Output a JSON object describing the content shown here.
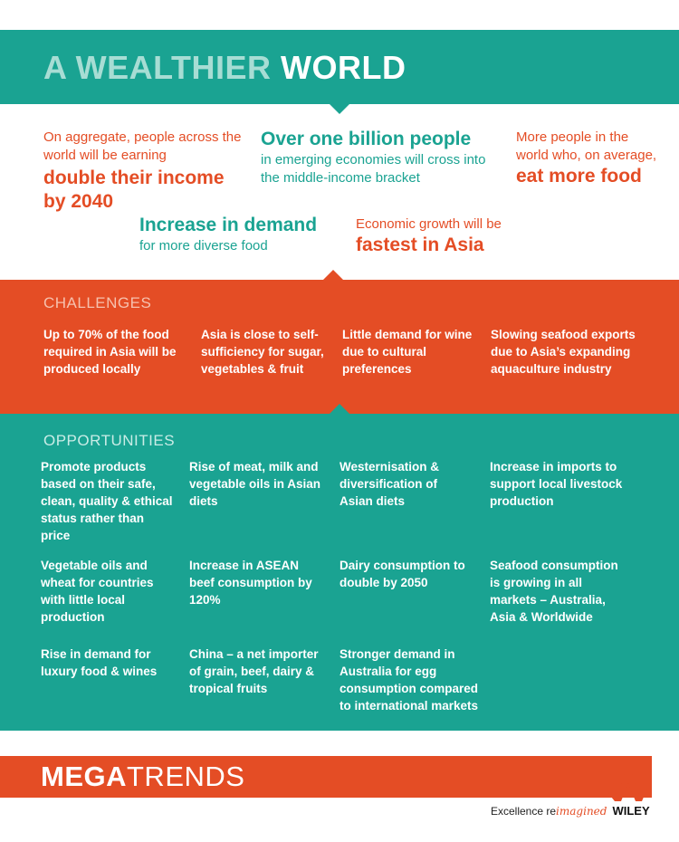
{
  "header": {
    "title_light": "A WEALTHIER",
    "title_bold": "WORLD"
  },
  "highlights": {
    "income": {
      "text": "On aggregate, people across the world will be earning",
      "big": "double their income by 2040"
    },
    "billion": {
      "big": "Over one billion people",
      "text": "in emerging economies will cross into the middle-income bracket"
    },
    "food": {
      "text": "More people in the world who, on average,",
      "big": "eat more food"
    },
    "demand": {
      "big": "Increase in demand",
      "text": "for more diverse food"
    },
    "growth": {
      "text": "Economic growth will be",
      "big": "fastest in Asia"
    }
  },
  "challenges": {
    "label": "CHALLENGES",
    "items": [
      "Up to 70% of the food required in Asia will be produced locally",
      "Asia is close to self-sufficiency for sugar, vegetables & fruit",
      "Little demand for wine due to cultural preferences",
      "Slowing seafood exports due to Asia’s expanding aquaculture industry"
    ]
  },
  "opportunities": {
    "label": "OPPORTUNITIES",
    "items": [
      "Promote products based on their safe, clean, quality & ethical status rather than price",
      "Rise of meat, milk and vegetable oils in Asian diets",
      "Westernisation & diversification of Asian diets",
      "Increase in imports to support local livestock production",
      "Vegetable oils and wheat for countries with little local production",
      "Increase in ASEAN beef consumption by 120%",
      "Dairy consumption to double by 2050",
      "Seafood consumption is growing in all markets – Australia, Asia & Worldwide",
      "Rise in demand for luxury food & wines",
      "China – a net importer of grain, beef, dairy & tropical fruits",
      "Stronger demand in Australia for egg consumption compared to international markets"
    ]
  },
  "footer": {
    "brand_bold": "MEGA",
    "brand_light": "TRENDS",
    "tagline_pre": "Excellence re",
    "tagline_script": "imagined",
    "company": "WILEY",
    "logo_icon": "wiley-w-logo-icon"
  },
  "colors": {
    "teal": "#1aa392",
    "orange": "#e44d25"
  }
}
